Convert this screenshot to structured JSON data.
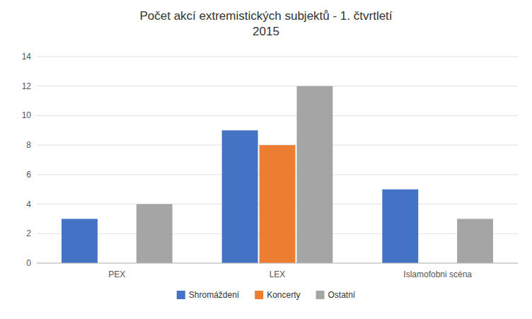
{
  "chart_data": {
    "type": "bar",
    "title": "Počet akcí extremistických subjektů - 1. čtvrtletí\n2015",
    "categories": [
      "PEX",
      "LEX",
      "Islamofobni scéna"
    ],
    "series": [
      {
        "name": "Shromáždení",
        "color": "#4472C4",
        "values": [
          3,
          9,
          5
        ]
      },
      {
        "name": "Koncerty",
        "color": "#ED7D31",
        "values": [
          0,
          8,
          0
        ]
      },
      {
        "name": "Ostatní",
        "color": "#A5A5A5",
        "values": [
          4,
          12,
          3
        ]
      }
    ],
    "ylim": [
      0,
      14
    ],
    "yticks": [
      0,
      2,
      4,
      6,
      8,
      10,
      12,
      14
    ],
    "grid": true,
    "legend": "bottom"
  }
}
